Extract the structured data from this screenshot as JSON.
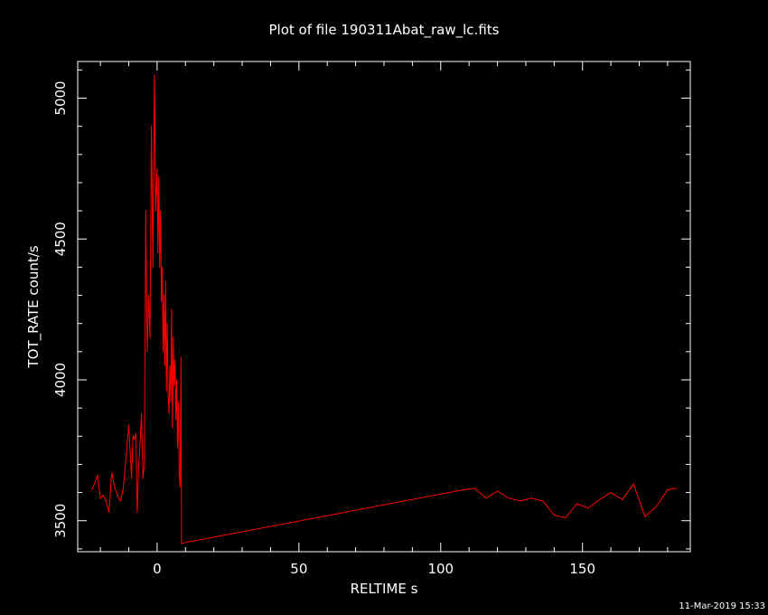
{
  "title": "Plot of file 190311Abat_raw_lc.fits",
  "timestamp": "11-Mar-2019 15:33",
  "colors": {
    "background": "#000000",
    "axes": "#ffffff",
    "series": "#ff0000"
  },
  "chart_data": {
    "type": "line",
    "title": "Plot of file 190311Abat_raw_lc.fits",
    "xlabel": "RELTIME  s",
    "ylabel": "TOT_RATE  count/s",
    "xlim": [
      -28,
      188
    ],
    "ylim": [
      3390,
      5130
    ],
    "x_ticks": [
      0,
      50,
      100,
      150
    ],
    "y_ticks": [
      3500,
      4000,
      4500,
      5000
    ],
    "grid": false,
    "series": [
      {
        "name": "",
        "x": [
          -23,
          -21,
          -20,
          -19,
          -18,
          -17,
          -16,
          -15,
          -14,
          -13,
          -12,
          -11,
          -10,
          -9,
          -8.5,
          -8,
          -7.5,
          -7,
          -6.5,
          -6,
          -5.5,
          -5,
          -4.5,
          -4,
          -3.5,
          -3,
          -2.5,
          -2,
          -1.5,
          -1,
          -0.5,
          0,
          0.3,
          0.6,
          0.9,
          1.2,
          1.5,
          1.8,
          2.1,
          2.4,
          2.7,
          3,
          3.3,
          3.6,
          3.9,
          4.2,
          4.5,
          4.8,
          5.1,
          5.4,
          5.7,
          6,
          6.3,
          6.6,
          6.9,
          7.2,
          7.5,
          7.8,
          8.1,
          8.4,
          8.6,
          108,
          112,
          116,
          120,
          124,
          128,
          132,
          136,
          140,
          144,
          148,
          152,
          156,
          160,
          164,
          168,
          172,
          176,
          180,
          183
        ],
        "y": [
          3610,
          3660,
          3580,
          3590,
          3570,
          3530,
          3670,
          3620,
          3590,
          3570,
          3610,
          3720,
          3840,
          3650,
          3800,
          3790,
          3810,
          3530,
          3700,
          3780,
          3880,
          3650,
          3700,
          4600,
          4100,
          4300,
          4150,
          4900,
          4400,
          5080,
          4600,
          4750,
          4450,
          4720,
          4400,
          4600,
          4280,
          4400,
          4100,
          4300,
          4050,
          4350,
          3960,
          4200,
          3950,
          3880,
          4050,
          3920,
          4250,
          3830,
          4150,
          3980,
          4070,
          3860,
          4000,
          3760,
          3920,
          3660,
          3620,
          4080,
          3420,
          3610,
          3615,
          3580,
          3605,
          3580,
          3570,
          3580,
          3570,
          3520,
          3510,
          3560,
          3545,
          3575,
          3600,
          3575,
          3630,
          3515,
          3550,
          3610,
          3615
        ]
      }
    ]
  }
}
